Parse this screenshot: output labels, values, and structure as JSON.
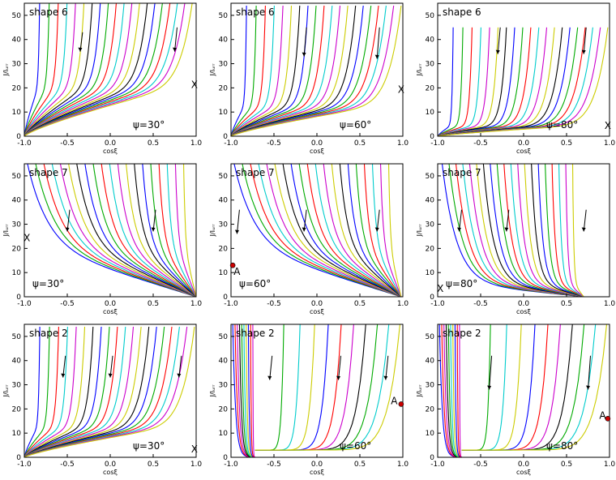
{
  "colors": [
    "#0000ff",
    "#00aa00",
    "#ff0000",
    "#00cccc",
    "#cc00cc",
    "#cccc00",
    "#000000"
  ],
  "chart_data": [
    {
      "type": "line",
      "panel": "shape6-psi30",
      "shape_label": "shape 6",
      "psi_label": "ψ=30°",
      "xlabel": "cosξ",
      "ylabel": "J/Iᵤᵣᵣ",
      "xlim": [
        -1,
        1
      ],
      "ylim": [
        0,
        55
      ],
      "x_ticks": [
        "-1.0",
        "-0.5",
        "0.0",
        "0.5",
        "1.0"
      ],
      "y_ticks": [
        "0",
        "10",
        "20",
        "30",
        "40",
        "50"
      ],
      "family": "fan_low",
      "base": [
        -1,
        0
      ],
      "n_curves": 20,
      "knee_y": 22,
      "markers": [
        {
          "text": "X",
          "x": 0.98,
          "y": 20
        }
      ],
      "arrows": [
        {
          "x": -0.35,
          "y1": 43,
          "y2": 35
        },
        {
          "x": 0.75,
          "y1": 45,
          "y2": 35
        }
      ]
    },
    {
      "type": "line",
      "panel": "shape6-psi60",
      "shape_label": "shape 6",
      "psi_label": "ψ=60°",
      "xlabel": "cosξ",
      "ylabel": "J/Iᵤᵣᵣ",
      "xlim": [
        -1,
        1
      ],
      "ylim": [
        0,
        55
      ],
      "x_ticks": [
        "-1.0",
        "-0.5",
        "0.0",
        "0.5",
        "1.0"
      ],
      "y_ticks": [
        "0",
        "10",
        "20",
        "30",
        "40",
        "50"
      ],
      "family": "fan_low",
      "base": [
        -1,
        0
      ],
      "n_curves": 20,
      "knee_y": 14,
      "markers": [
        {
          "text": "X",
          "x": 0.98,
          "y": 18
        }
      ],
      "arrows": [
        {
          "x": -0.15,
          "y1": 45,
          "y2": 33
        },
        {
          "x": 0.7,
          "y1": 45,
          "y2": 32
        }
      ]
    },
    {
      "type": "line",
      "panel": "shape6-psi80",
      "shape_label": "shape 6",
      "psi_label": "ψ=80°",
      "xlabel": "cosξ",
      "ylabel": "J/Iᵤᵣᵣ",
      "xlim": [
        -1,
        1
      ],
      "ylim": [
        0,
        55
      ],
      "x_ticks": [
        "-1.0",
        "-0.5",
        "0.0",
        "0.5",
        "1.0"
      ],
      "y_ticks": [
        "0",
        "10",
        "20",
        "30",
        "40",
        "50"
      ],
      "family": "fan_low",
      "base": [
        -1,
        0
      ],
      "n_curves": 20,
      "knee_y": 5,
      "markers": [
        {
          "text": "X",
          "x": 0.98,
          "y": 3
        }
      ],
      "arrows": [
        {
          "x": -0.3,
          "y1": 45,
          "y2": 34
        },
        {
          "x": 0.7,
          "y1": 45,
          "y2": 34
        }
      ]
    },
    {
      "type": "line",
      "panel": "shape7-psi30",
      "shape_label": "shape 7",
      "psi_label": "ψ=30°",
      "xlabel": "cosξ",
      "ylabel": "J/Iᵤᵣᵣ",
      "xlim": [
        -1,
        1
      ],
      "ylim": [
        0,
        55
      ],
      "x_ticks": [
        "-1.0",
        "-0.5",
        "0.0",
        "0.5",
        "1.0"
      ],
      "y_ticks": [
        "0",
        "10",
        "20",
        "30",
        "40",
        "50"
      ],
      "family": "fan_right",
      "base": [
        1,
        0
      ],
      "n_curves": 20,
      "markers": [
        {
          "text": "X",
          "x": -0.97,
          "y": 23
        }
      ],
      "arrows": [
        {
          "x": -0.5,
          "y1": 36,
          "y2": 27
        },
        {
          "x": 0.5,
          "y1": 36,
          "y2": 27
        }
      ]
    },
    {
      "type": "line",
      "panel": "shape7-psi60",
      "shape_label": "shape 7",
      "psi_label": "ψ=60°",
      "xlabel": "cosξ",
      "ylabel": "J/Iᵤᵣᵣ",
      "xlim": [
        -1,
        1
      ],
      "ylim": [
        0,
        55
      ],
      "x_ticks": [
        "-1.0",
        "-0.5",
        "0.0",
        "0.5",
        "1.0"
      ],
      "y_ticks": [
        "0",
        "10",
        "20",
        "30",
        "40",
        "50"
      ],
      "family": "fan_right",
      "base": [
        0.98,
        0
      ],
      "n_curves": 20,
      "markers": [
        {
          "text": "A",
          "x": -0.93,
          "y": 9,
          "point": [
            -0.98,
            13
          ]
        }
      ],
      "arrows": [
        {
          "x": -0.93,
          "y1": 36,
          "y2": 26
        },
        {
          "x": -0.15,
          "y1": 36,
          "y2": 27
        },
        {
          "x": 0.7,
          "y1": 36,
          "y2": 27
        }
      ]
    },
    {
      "type": "line",
      "panel": "shape7-psi80",
      "shape_label": "shape 7",
      "psi_label": "ψ=80°",
      "xlabel": "cosξ",
      "ylabel": "J/Iᵤᵣᵣ",
      "xlim": [
        -1,
        1
      ],
      "ylim": [
        0,
        55
      ],
      "x_ticks": [
        "-1.0",
        "-0.5",
        "0.0",
        "0.5",
        "1.0"
      ],
      "y_ticks": [
        "0",
        "10",
        "20",
        "30",
        "40",
        "50"
      ],
      "family": "fan_right",
      "base": [
        0.7,
        0
      ],
      "n_curves": 20,
      "markers": [
        {
          "text": "X",
          "x": -0.97,
          "y": 2
        }
      ],
      "arrows": [
        {
          "x": -0.75,
          "y1": 36,
          "y2": 27
        },
        {
          "x": -0.2,
          "y1": 36,
          "y2": 27
        },
        {
          "x": 0.7,
          "y1": 36,
          "y2": 27
        }
      ]
    },
    {
      "type": "line",
      "panel": "shape2-psi30",
      "shape_label": "shape 2",
      "psi_label": "ψ=30°",
      "xlabel": "cosξ",
      "ylabel": "J/Iᵤᵣᵣ",
      "xlim": [
        -1,
        1
      ],
      "ylim": [
        0,
        55
      ],
      "x_ticks": [
        "-1.0",
        "-0.5",
        "0.0",
        "0.5",
        "1.0"
      ],
      "y_ticks": [
        "0",
        "10",
        "20",
        "30",
        "40",
        "50"
      ],
      "family": "fan_low",
      "base": [
        -1,
        0
      ],
      "n_curves": 20,
      "knee_y": 14,
      "markers": [
        {
          "text": "X",
          "x": 0.98,
          "y": 2
        }
      ],
      "arrows": [
        {
          "x": -0.55,
          "y1": 42,
          "y2": 33
        },
        {
          "x": 0.0,
          "y1": 42,
          "y2": 33
        },
        {
          "x": 0.8,
          "y1": 42,
          "y2": 33
        }
      ]
    },
    {
      "type": "line",
      "panel": "shape2-psi60",
      "shape_label": "shape 2",
      "psi_label": "ψ=60°",
      "xlabel": "cosξ",
      "ylabel": "J/Iᵤᵣᵣ",
      "xlim": [
        -1,
        1
      ],
      "ylim": [
        0,
        55
      ],
      "x_ticks": [
        "-1.0",
        "-0.5",
        "0.0",
        "0.5",
        "1.0"
      ],
      "y_ticks": [
        "0",
        "10",
        "20",
        "30",
        "40",
        "50"
      ],
      "family": "valley",
      "base": [
        -0.72,
        0
      ],
      "n_curves": 20,
      "markers": [
        {
          "text": "A",
          "x": 0.9,
          "y": 22,
          "point": [
            0.98,
            22
          ]
        }
      ],
      "arrows": [
        {
          "x": -0.55,
          "y1": 42,
          "y2": 32
        },
        {
          "x": 0.25,
          "y1": 42,
          "y2": 32
        },
        {
          "x": 0.8,
          "y1": 42,
          "y2": 32
        }
      ]
    },
    {
      "type": "line",
      "panel": "shape2-psi80",
      "shape_label": "shape 2",
      "psi_label": "ψ=80°",
      "xlabel": "cosξ",
      "ylabel": "J/Iᵤᵣᵣ",
      "xlim": [
        -1,
        1
      ],
      "ylim": [
        0,
        55
      ],
      "x_ticks": [
        "-1.0",
        "-0.5",
        "0.0",
        "0.5",
        "1.0"
      ],
      "y_ticks": [
        "0",
        "10",
        "20",
        "30",
        "40",
        "50"
      ],
      "family": "valley",
      "base": [
        -0.72,
        0
      ],
      "n_curves": 20,
      "markers": [
        {
          "text": "A",
          "x": 0.92,
          "y": 16,
          "point": [
            0.98,
            16
          ]
        }
      ],
      "arrows": [
        {
          "x": -0.4,
          "y1": 42,
          "y2": 28
        },
        {
          "x": 0.75,
          "y1": 42,
          "y2": 28
        }
      ]
    }
  ]
}
